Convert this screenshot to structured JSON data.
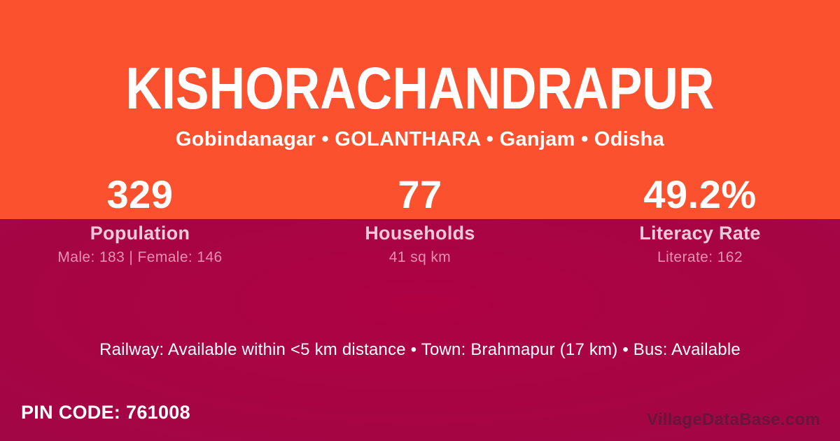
{
  "card": {
    "title": "KISHORACHANDRAPUR",
    "subtitle": "Gobindanagar • GOLANTHARA • Ganjam • Odisha",
    "stats": [
      {
        "value": "329",
        "label": "Population",
        "detail": "Male: 183 | Female: 146"
      },
      {
        "value": "77",
        "label": "Households",
        "detail": "41 sq km"
      },
      {
        "value": "49.2%",
        "label": "Literacy Rate",
        "detail": "Literate: 162"
      }
    ],
    "transport_line": "Railway: Available within <5 km distance  •  Town: Brahmapur (17 km)  •  Bus: Available",
    "pin_code": "PIN CODE: 761008",
    "watermark": "VillageDataBase.com",
    "colors": {
      "top_background": "#FB512E",
      "bottom_background": "#A70345",
      "title_text": "#FFFFFF",
      "stat_label_pink": "#F2C8DB",
      "stat_detail_pink": "#E791B2"
    }
  }
}
